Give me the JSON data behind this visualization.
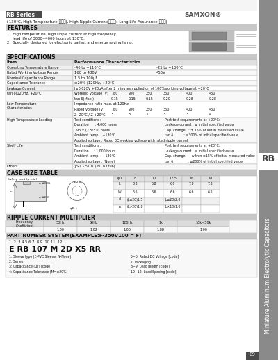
{
  "title_series": "RB Series",
  "brand": "SAMXON®",
  "subtitle": "+130°C, High Temperature(高温度), High Ripple Current(高紹波), Long Life Assurance(長寿命)",
  "features_title": "FEATURES",
  "features": [
    "1.  High temperature, high ripple current at high frequency,",
    "     lead life of 3000~4000 hours at 130°C.",
    "2.  Specially designed for electronic ballast and energy saving lamp."
  ],
  "specs_title": "SPECIFICATIONS",
  "case_size_title": "CASE SIZE TABLE",
  "ripple_title": "RIPPLE CURRENT MULTIPLIER",
  "part_number_title": "PART NUMBER SYSTEM(EXAMPLE:F-350V100 = F)",
  "part_number_example": "E RB 107 M 2D X5 RR",
  "bg_color": "#ffffff",
  "section_bg": "#c8c8c8",
  "series_tag_bg": "#4a4a4a",
  "series_tag_text": "#ffffff",
  "body_text": "#111111",
  "sidebar_bg": "#8a8a8a",
  "table_border": "#aaaaaa",
  "row_alt1": "#f2f2f2",
  "row_alt2": "#ffffff",
  "header_row_bg": "#e0e0e0"
}
